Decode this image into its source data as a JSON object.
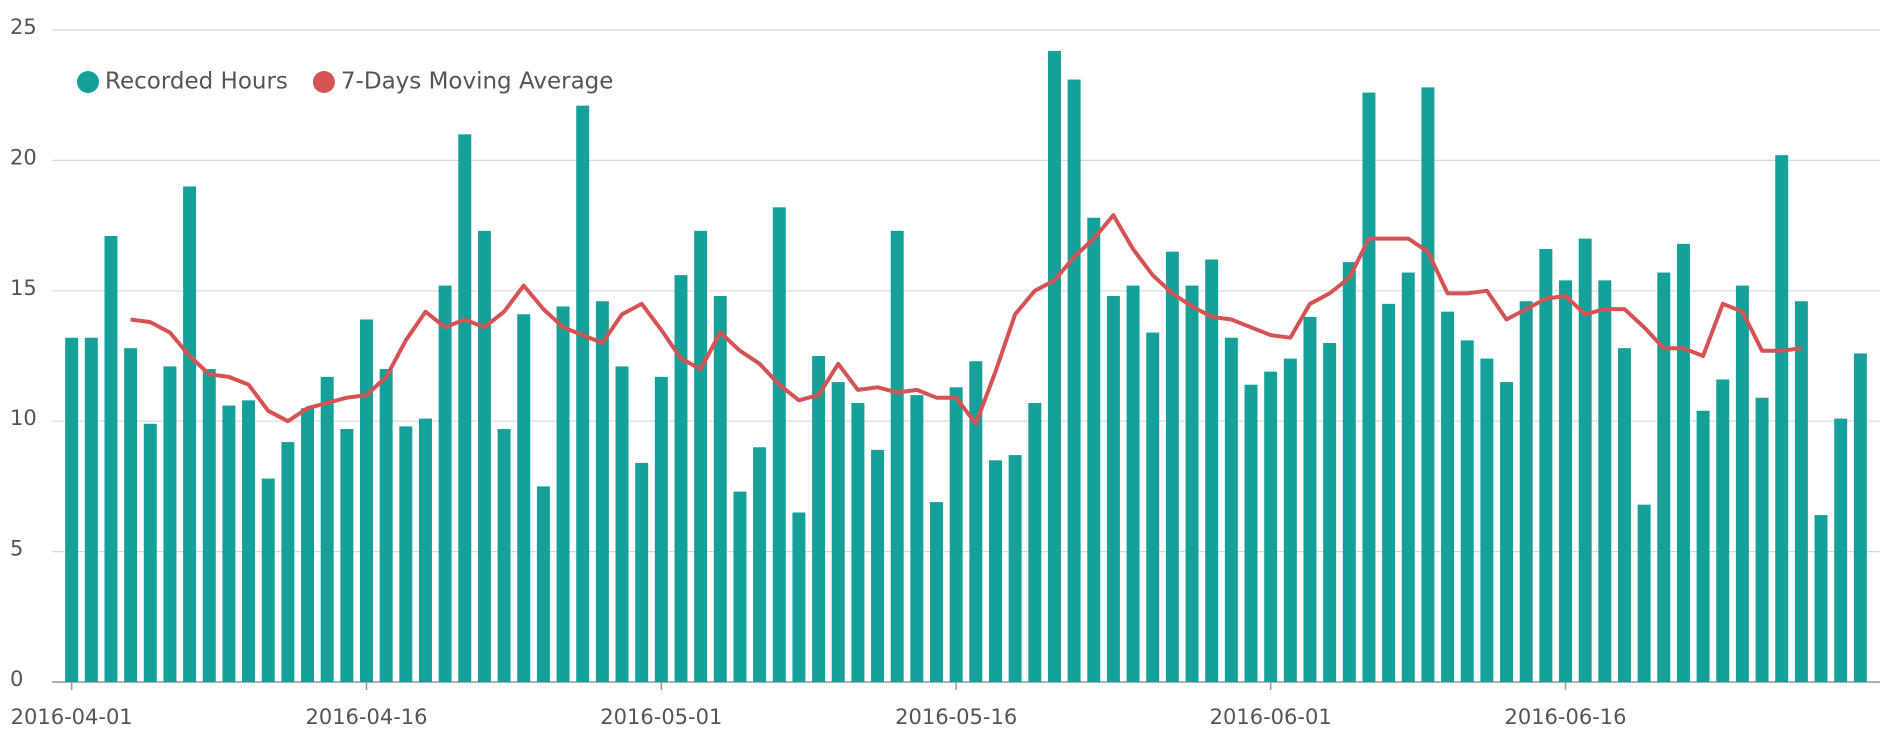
{
  "chart_data": {
    "type": "bar-line",
    "x": [
      "2016-04-01",
      "2016-04-02",
      "2016-04-03",
      "2016-04-04",
      "2016-04-05",
      "2016-04-06",
      "2016-04-07",
      "2016-04-08",
      "2016-04-09",
      "2016-04-10",
      "2016-04-11",
      "2016-04-12",
      "2016-04-13",
      "2016-04-14",
      "2016-04-15",
      "2016-04-16",
      "2016-04-17",
      "2016-04-18",
      "2016-04-19",
      "2016-04-20",
      "2016-04-21",
      "2016-04-22",
      "2016-04-23",
      "2016-04-24",
      "2016-04-25",
      "2016-04-26",
      "2016-04-27",
      "2016-04-28",
      "2016-04-29",
      "2016-04-30",
      "2016-05-01",
      "2016-05-02",
      "2016-05-03",
      "2016-05-04",
      "2016-05-05",
      "2016-05-06",
      "2016-05-07",
      "2016-05-08",
      "2016-05-09",
      "2016-05-10",
      "2016-05-11",
      "2016-05-12",
      "2016-05-13",
      "2016-05-14",
      "2016-05-15",
      "2016-05-16",
      "2016-05-17",
      "2016-05-18",
      "2016-05-19",
      "2016-05-20",
      "2016-05-21",
      "2016-05-22",
      "2016-05-23",
      "2016-05-24",
      "2016-05-25",
      "2016-05-26",
      "2016-05-27",
      "2016-05-28",
      "2016-05-29",
      "2016-05-30",
      "2016-05-31",
      "2016-06-01",
      "2016-06-02",
      "2016-06-03",
      "2016-06-04",
      "2016-06-05",
      "2016-06-06",
      "2016-06-07",
      "2016-06-08",
      "2016-06-09",
      "2016-06-10",
      "2016-06-11",
      "2016-06-12",
      "2016-06-13",
      "2016-06-14",
      "2016-06-15",
      "2016-06-16",
      "2016-06-17",
      "2016-06-18",
      "2016-06-19",
      "2016-06-20",
      "2016-06-21",
      "2016-06-22",
      "2016-06-23",
      "2016-06-24",
      "2016-06-25",
      "2016-06-26",
      "2016-06-27",
      "2016-06-28",
      "2016-06-29",
      "2016-06-30",
      "2016-07-01"
    ],
    "series": [
      {
        "name": "Recorded Hours",
        "type": "bar",
        "color": "#16a09a",
        "values": [
          13.2,
          13.2,
          17.1,
          12.8,
          9.9,
          12.1,
          19.0,
          12.0,
          10.6,
          10.8,
          7.8,
          9.2,
          10.5,
          11.7,
          9.7,
          13.9,
          12.0,
          9.8,
          10.1,
          15.2,
          21.0,
          17.3,
          9.7,
          14.1,
          7.5,
          14.4,
          22.1,
          14.6,
          12.1,
          8.4,
          11.7,
          15.6,
          17.3,
          14.8,
          7.3,
          9.0,
          18.2,
          6.5,
          12.5,
          11.5,
          10.7,
          8.9,
          17.3,
          11.0,
          6.9,
          11.3,
          12.3,
          8.5,
          8.7,
          10.7,
          24.2,
          23.1,
          17.8,
          14.8,
          15.2,
          13.4,
          16.5,
          15.2,
          16.2,
          13.2,
          11.4,
          11.9,
          12.4,
          14.0,
          13.0,
          16.1,
          22.6,
          14.5,
          15.7,
          22.8,
          14.2,
          13.1,
          12.4,
          11.5,
          14.6,
          16.6,
          15.4,
          17.0,
          15.4,
          12.8,
          6.8,
          15.7,
          16.8,
          10.4,
          11.6,
          15.2,
          10.9,
          20.2,
          14.6,
          6.4,
          10.1,
          12.6
        ]
      },
      {
        "name": "7-Days Moving Average",
        "type": "line",
        "color": "#d65353",
        "values": [
          null,
          null,
          null,
          13.9,
          13.8,
          13.4,
          12.5,
          11.8,
          11.7,
          11.4,
          10.4,
          10.0,
          10.5,
          10.7,
          10.9,
          11.0,
          11.7,
          13.1,
          14.2,
          13.6,
          13.9,
          13.6,
          14.2,
          15.2,
          14.3,
          13.6,
          13.3,
          13.0,
          14.1,
          14.5,
          13.5,
          12.4,
          12.0,
          13.4,
          12.7,
          12.2,
          11.4,
          10.8,
          11.0,
          12.2,
          11.2,
          11.3,
          11.1,
          11.2,
          10.9,
          10.9,
          9.9,
          11.9,
          14.1,
          15.0,
          15.4,
          16.3,
          17.0,
          17.9,
          16.6,
          15.6,
          14.9,
          14.4,
          14.0,
          13.9,
          13.6,
          13.3,
          13.2,
          14.5,
          14.9,
          15.5,
          17.0,
          17.0,
          17.0,
          16.5,
          14.9,
          14.9,
          15.0,
          13.9,
          14.3,
          14.7,
          14.8,
          14.1,
          14.3,
          14.3,
          13.6,
          12.8,
          12.8,
          12.5,
          14.5,
          14.2,
          12.7,
          12.7,
          12.8,
          null,
          null,
          null
        ]
      }
    ],
    "xlim": [
      "2016-03-31",
      "2016-07-02"
    ],
    "xticks": [
      "2016-04-01",
      "2016-04-16",
      "2016-05-01",
      "2016-05-16",
      "2016-06-01",
      "2016-06-16"
    ],
    "ylim": [
      0,
      25
    ],
    "yticks": [
      0,
      5,
      10,
      15,
      20,
      25
    ],
    "grid": true,
    "legend": "top-left"
  }
}
